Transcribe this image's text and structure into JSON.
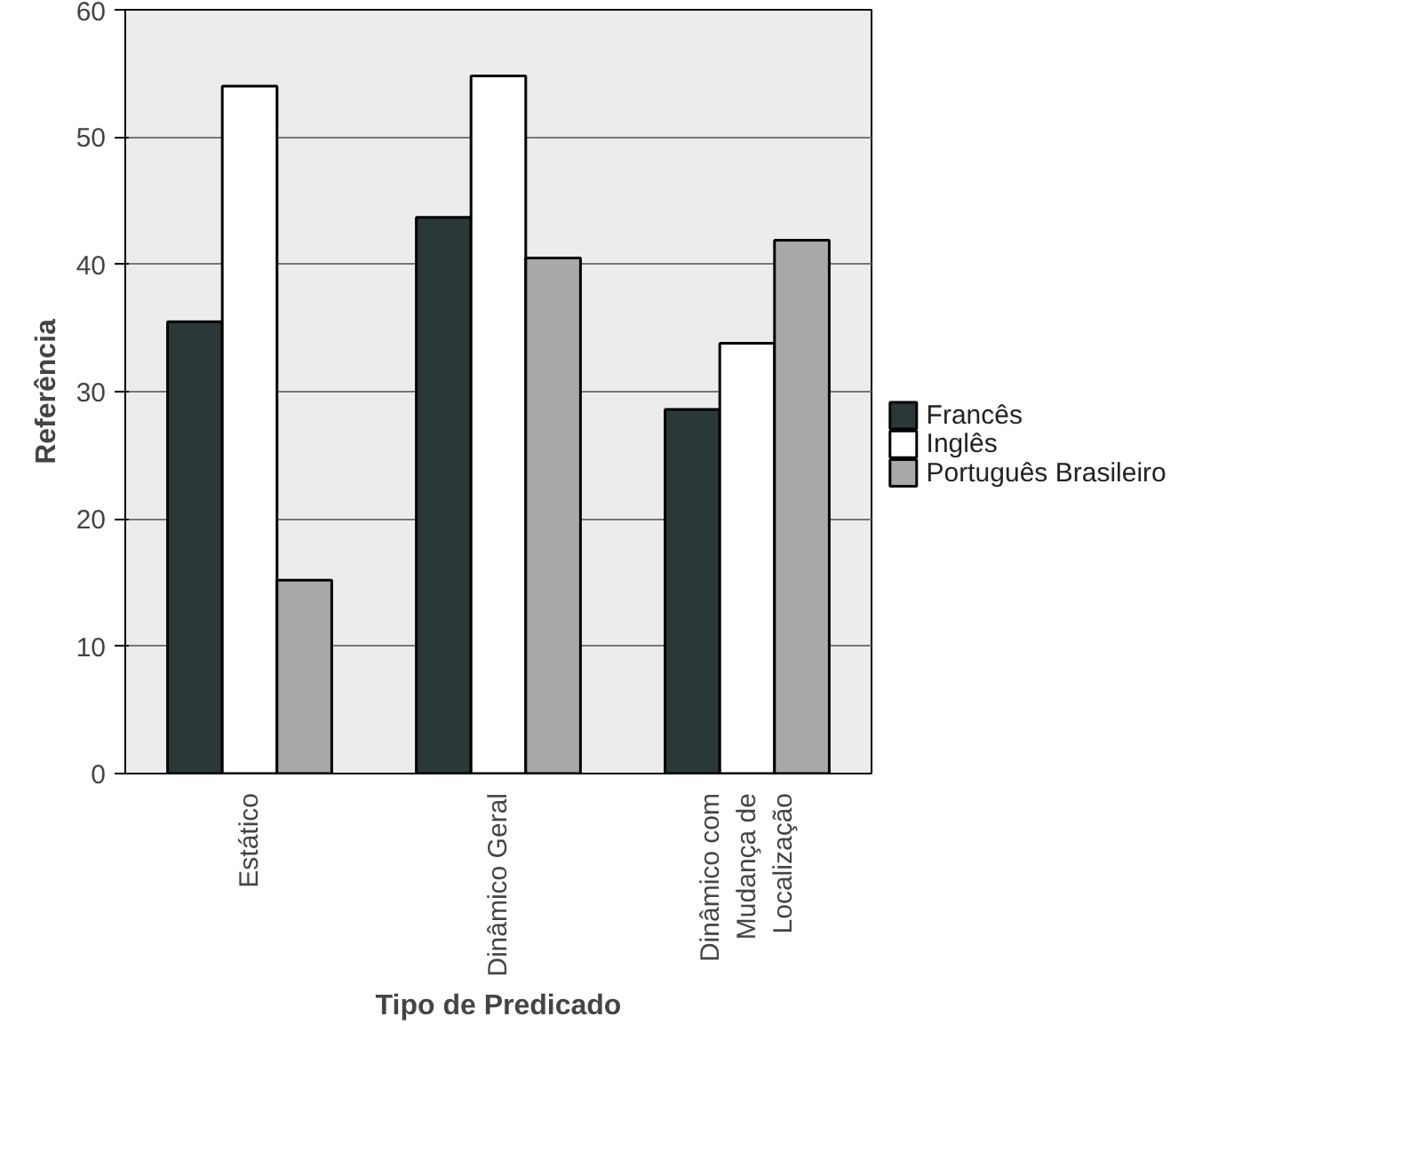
{
  "chart_data": {
    "type": "bar",
    "xlabel": "Tipo de Predicado",
    "ylabel": "Referência",
    "categories": [
      "Estático",
      "Dinâmico Geral",
      "Dinâmico com Mudança de Localização"
    ],
    "series": [
      {
        "name": "Francês",
        "color": "#2b3838",
        "values": [
          35.5,
          43.7,
          28.6
        ]
      },
      {
        "name": "Inglês",
        "color": "#ffffff",
        "values": [
          54,
          54.8,
          33.8
        ]
      },
      {
        "name": "Português Brasileiro",
        "color": "#a8a8a8",
        "values": [
          15.2,
          40.5,
          41.9
        ]
      }
    ],
    "ylim": [
      0,
      60
    ],
    "yticks": [
      0,
      10,
      20,
      30,
      40,
      50,
      60
    ],
    "grid": "y",
    "legend": "bottom right"
  }
}
